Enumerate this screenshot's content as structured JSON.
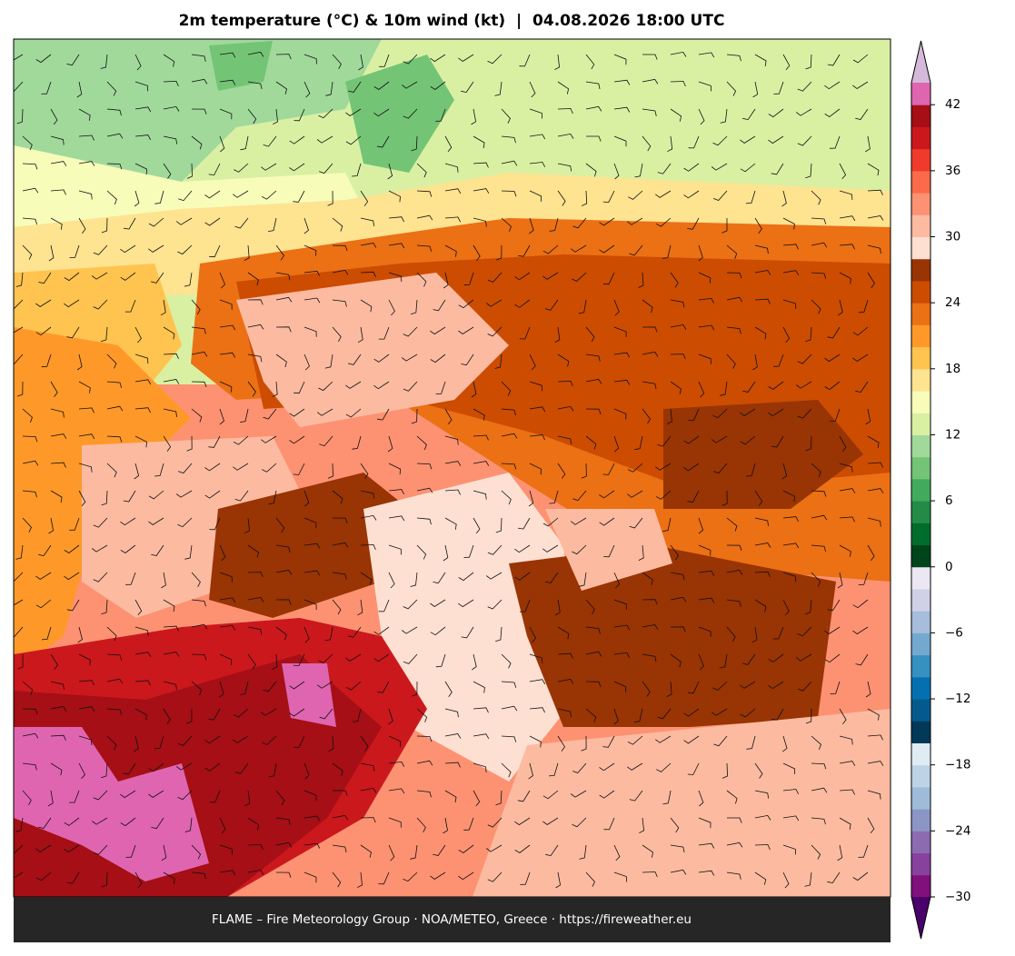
{
  "title": "2m temperature (°C) & 10m wind (kt)  |  04.08.2026 18:00 UTC",
  "footer": "FLAME – Fire Meteorology Group · NOA/METEO, Greece · https://fireweather.eu",
  "colorbar": {
    "levels": [
      -30,
      -28,
      -26,
      -24,
      -22,
      -20,
      -18,
      -16,
      -14,
      -12,
      -10,
      -8,
      -6,
      -4,
      -2,
      0,
      2,
      4,
      6,
      8,
      10,
      12,
      14,
      16,
      18,
      20,
      22,
      24,
      26,
      28,
      30,
      32,
      34,
      36,
      38,
      40,
      42,
      44
    ],
    "colors": [
      "#810f7c",
      "#88419d",
      "#8c6bb1",
      "#8c96c6",
      "#9ebcda",
      "#bfd3e6",
      "#e0ecf4",
      "#023858",
      "#045a8d",
      "#0570b0",
      "#3690c0",
      "#74a9cf",
      "#a6bddb",
      "#d0d1e6",
      "#ece7f2",
      "#00441b",
      "#006d2c",
      "#238b45",
      "#41ab5d",
      "#74c476",
      "#a1d99b",
      "#d9f0a3",
      "#f7fcb9",
      "#fee391",
      "#fec44f",
      "#fe9929",
      "#ec7014",
      "#cc4c02",
      "#993404",
      "#fee0d2",
      "#fcbba1",
      "#fc9272",
      "#fb6a4a",
      "#ef3b2c",
      "#cb181d",
      "#a50f15",
      "#df65b0"
    ],
    "under_color": "#49006a",
    "over_color": "#d4b9da",
    "ticks": [
      {
        "value": -30,
        "label": "−30"
      },
      {
        "value": -24,
        "label": "−24"
      },
      {
        "value": -18,
        "label": "−18"
      },
      {
        "value": -12,
        "label": "−12"
      },
      {
        "value": -6,
        "label": "−6"
      },
      0,
      6,
      12,
      18,
      24,
      30,
      36,
      42
    ]
  }
}
